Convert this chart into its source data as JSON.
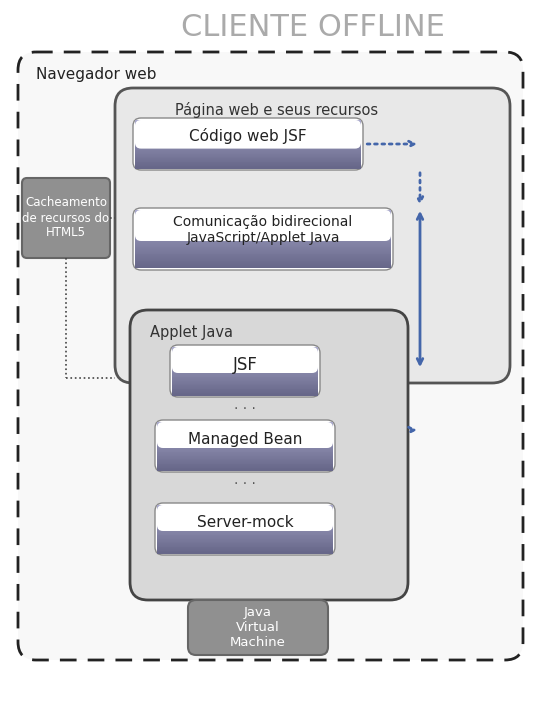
{
  "title": "CLIENTE OFFLINE",
  "title_color": "#aaaaaa",
  "title_fontsize": 22,
  "bg_color": "#ffffff",
  "navegador_label": "Navegador web",
  "pagina_label": "Página web e seus recursos",
  "applet_label": "Applet Java",
  "box_labels": {
    "codigo": "Código web JSF",
    "comunicacao": "Comunicação bidirecional\nJavaScript/Applet Java",
    "jsf": "JSF",
    "managed": "Managed Bean",
    "server": "Server-mock",
    "jvm": "Java\nVirtual\nMachine",
    "cache": "Cacheamento\nde recursos do\nHTML5"
  },
  "colors": {
    "outer_bg": "#f5f5f5",
    "inner_bg": "#e8e8e8",
    "applet_bg": "#d8d8d8",
    "box_top": "#8888aa",
    "box_bottom": "#555570",
    "box_border": "#555570",
    "jvm_bg": "#888888",
    "cache_bg": "#888888",
    "arrow_blue": "#4466aa",
    "dashed_border": "#222222",
    "white_box_bg": "#ffffff"
  }
}
